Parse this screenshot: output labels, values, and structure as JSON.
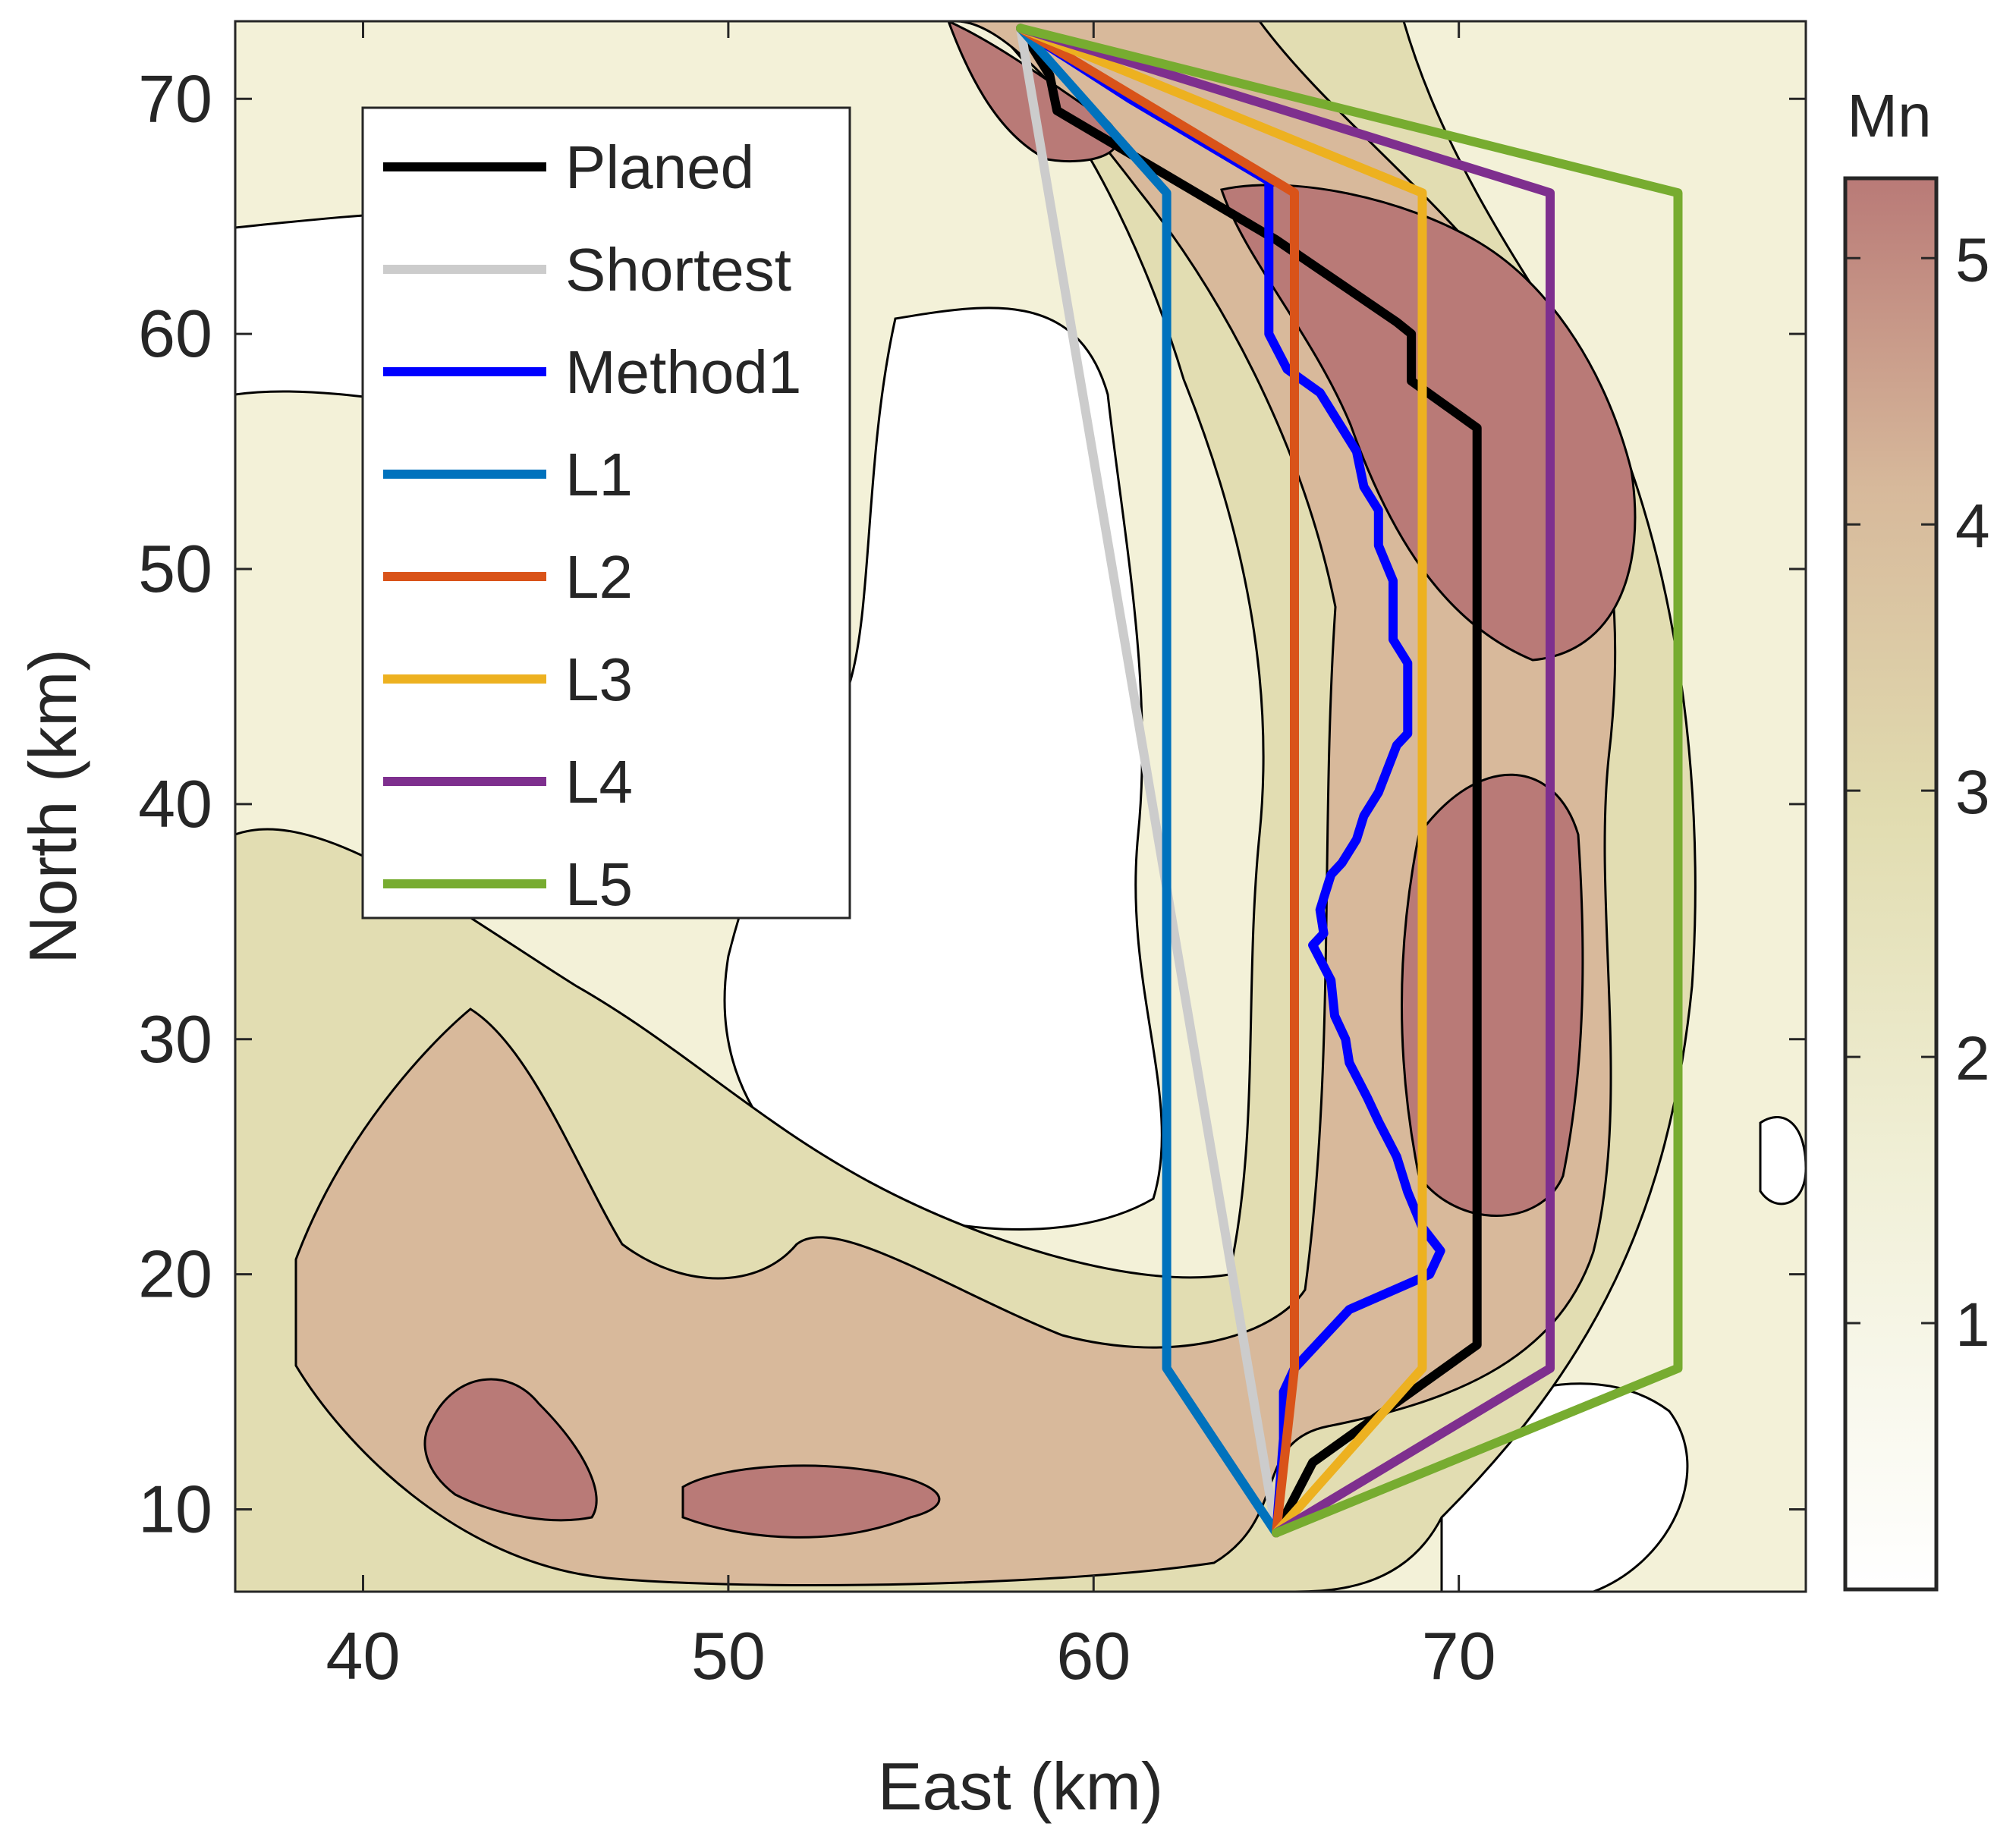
{
  "chart_data": {
    "type": "line",
    "xlabel": "East (km)",
    "ylabel": "North (km)",
    "xlim": [
      36.5,
      79.5
    ],
    "ylim": [
      6.5,
      73.3
    ],
    "xticks": [
      40,
      50,
      60,
      70
    ],
    "yticks": [
      10,
      20,
      30,
      40,
      50,
      60,
      70
    ],
    "grid": false,
    "legend_position": "top-left",
    "colorbar": {
      "title": "Mn",
      "range": [
        0,
        5.3
      ],
      "ticks": [
        1,
        2,
        3,
        4,
        5
      ],
      "colors": [
        "#ffffff",
        "#f0efd6",
        "#e1dcb0",
        "#d7b99b",
        "#b97a77"
      ]
    },
    "contour_background": {
      "description_levels": [
        1,
        2,
        3,
        4,
        5
      ],
      "fill_colors": [
        "#ffffff",
        "#f3f1d8",
        "#e2ddb2",
        "#d8b99b",
        "#b97a77"
      ],
      "line_color": "#000000"
    },
    "series": [
      {
        "name": "Planed",
        "color": "#000000",
        "x": [
          58.0,
          58.8,
          59.0,
          65.0,
          68.3,
          68.7,
          68.7,
          70.5,
          70.5,
          66.0,
          65.0
        ],
        "y": [
          73.0,
          71.0,
          69.5,
          64.0,
          60.5,
          60.0,
          58.0,
          56.0,
          17.0,
          12.0,
          9.0
        ]
      },
      {
        "name": "Shortest",
        "color": "#cccccc",
        "x": [
          58.0,
          65.0
        ],
        "y": [
          73.0,
          9.0
        ]
      },
      {
        "name": "Method1",
        "color": "#0000ff",
        "x": [
          58.0,
          61.0,
          64.8,
          64.8,
          65.3,
          66.2,
          66.8,
          67.2,
          67.4,
          67.8,
          67.8,
          68.2,
          68.2,
          68.6,
          68.6,
          68.3,
          67.8,
          67.4,
          67.2,
          66.8,
          66.5,
          66.2,
          66.3,
          66.0,
          66.5,
          66.6,
          66.9,
          67.0,
          67.5,
          67.8,
          68.3,
          68.6,
          69.0,
          69.5,
          69.2,
          67.0,
          65.5,
          65.2,
          65.2,
          65.0
        ],
        "y": [
          73.0,
          70.0,
          66.5,
          60.0,
          58.5,
          57.5,
          56.0,
          55.0,
          53.5,
          52.5,
          51.0,
          49.5,
          47.0,
          46.0,
          43.0,
          42.5,
          40.5,
          39.5,
          38.5,
          37.5,
          37.0,
          35.5,
          34.5,
          34.0,
          32.5,
          31.0,
          30.0,
          29.0,
          27.5,
          26.5,
          25.0,
          23.5,
          22.0,
          21.0,
          20.0,
          18.5,
          16.0,
          15.0,
          13.0,
          9.0
        ]
      },
      {
        "name": "L1",
        "color": "#0072bd",
        "x": [
          58.0,
          62.0,
          62.0,
          62.0,
          65.0
        ],
        "y": [
          73.0,
          66.0,
          40.0,
          16.0,
          9.0
        ]
      },
      {
        "name": "L2",
        "color": "#d95319",
        "x": [
          58.0,
          65.5,
          65.5,
          65.5,
          65.0
        ],
        "y": [
          73.0,
          66.0,
          40.0,
          16.0,
          9.0
        ]
      },
      {
        "name": "L3",
        "color": "#edb120",
        "x": [
          58.0,
          69.0,
          69.0,
          69.0,
          65.0
        ],
        "y": [
          73.0,
          66.0,
          40.0,
          16.0,
          9.0
        ]
      },
      {
        "name": "L4",
        "color": "#7e2f8e",
        "x": [
          58.0,
          72.5,
          72.5,
          72.5,
          65.0
        ],
        "y": [
          73.0,
          66.0,
          40.0,
          16.0,
          9.0
        ]
      },
      {
        "name": "L5",
        "color": "#77ac30",
        "x": [
          58.0,
          76.0,
          76.0,
          76.0,
          65.0
        ],
        "y": [
          73.0,
          66.0,
          40.0,
          16.0,
          9.0
        ]
      }
    ]
  }
}
